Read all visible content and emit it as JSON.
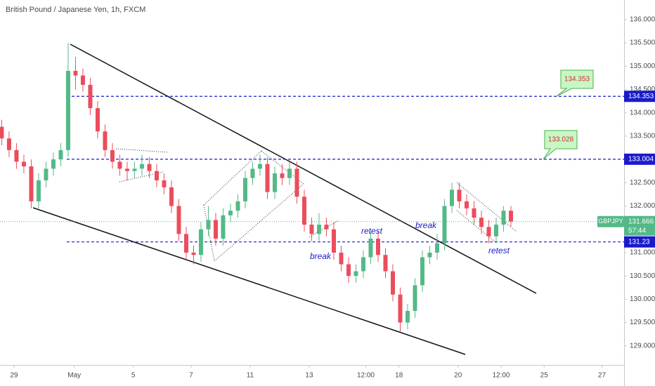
{
  "chart_data": {
    "type": "candlestick",
    "title": "British Pound / Japanese Yen, 1h, FXCM",
    "x": [
      -10,
      -4,
      2,
      8,
      14,
      20,
      26,
      32,
      38,
      44,
      50,
      56,
      62,
      68,
      74,
      80,
      86,
      92,
      98,
      104,
      110,
      116,
      122,
      128,
      134,
      140,
      146,
      152,
      158,
      164,
      170,
      176,
      182,
      188,
      194,
      200,
      206,
      212,
      218,
      224,
      230,
      236,
      242,
      248,
      254,
      260,
      266,
      272,
      278,
      284,
      290,
      296,
      302,
      308,
      314,
      320,
      326,
      332,
      338,
      344,
      350,
      356,
      362,
      368,
      374,
      380,
      386,
      392,
      398,
      404
    ],
    "open": [
      133.7,
      133.45,
      133.2,
      132.95,
      132.85,
      132.1,
      132.55,
      132.8,
      133.0,
      133.2,
      134.9,
      134.8,
      134.6,
      134.1,
      133.6,
      133.2,
      132.95,
      132.8,
      132.75,
      132.8,
      132.9,
      132.75,
      132.55,
      132.4,
      132.0,
      131.4,
      131.0,
      130.95,
      131.5,
      131.7,
      131.3,
      131.8,
      131.9,
      132.1,
      132.6,
      132.8,
      132.9,
      132.3,
      132.7,
      132.6,
      132.8,
      132.2,
      131.6,
      131.4,
      131.6,
      131.5,
      131.0,
      130.75,
      130.5,
      130.6,
      130.9,
      131.3,
      130.95,
      130.6,
      130.1,
      129.5,
      129.75,
      130.3,
      130.9,
      131.0,
      131.2,
      132.0,
      132.35,
      132.1,
      131.95,
      131.75,
      131.55,
      131.35,
      131.6,
      131.9
    ],
    "high": [
      133.85,
      133.6,
      133.35,
      133.1,
      133.0,
      132.7,
      132.95,
      133.15,
      133.35,
      135.5,
      135.2,
      134.95,
      134.75,
      134.25,
      133.75,
      133.35,
      133.1,
      132.95,
      132.95,
      133.1,
      133.05,
      132.9,
      132.7,
      132.55,
      132.15,
      131.55,
      131.15,
      131.65,
      132.0,
      131.85,
      131.95,
      132.05,
      132.25,
      132.75,
      132.95,
      133.1,
      133.05,
      132.85,
      132.9,
      132.95,
      132.95,
      132.35,
      131.75,
      131.85,
      131.75,
      131.65,
      131.15,
      130.9,
      130.75,
      131.05,
      131.45,
      131.45,
      131.1,
      130.75,
      130.25,
      129.9,
      130.45,
      131.05,
      131.15,
      131.4,
      132.15,
      132.5,
      132.5,
      132.25,
      132.1,
      131.9,
      131.7,
      131.75,
      132.0,
      132.0
    ],
    "low": [
      133.3,
      133.05,
      132.8,
      132.7,
      131.95,
      131.95,
      132.4,
      132.65,
      132.85,
      133.05,
      134.5,
      134.45,
      133.95,
      133.45,
      133.05,
      132.8,
      132.65,
      132.55,
      132.6,
      132.65,
      132.6,
      132.4,
      132.25,
      131.85,
      131.25,
      130.85,
      130.75,
      130.8,
      131.35,
      131.15,
      131.15,
      131.65,
      131.75,
      131.95,
      132.45,
      132.65,
      132.15,
      132.15,
      132.45,
      132.45,
      132.05,
      131.45,
      131.25,
      131.25,
      131.35,
      130.85,
      130.6,
      130.35,
      130.35,
      130.45,
      130.75,
      130.8,
      130.45,
      129.95,
      129.3,
      129.35,
      129.6,
      130.15,
      130.75,
      130.85,
      131.05,
      131.85,
      131.95,
      131.8,
      131.6,
      131.4,
      131.2,
      131.2,
      131.45,
      131.55
    ],
    "close": [
      133.45,
      133.2,
      132.95,
      132.85,
      132.1,
      132.55,
      132.8,
      133.0,
      133.2,
      134.9,
      134.8,
      134.6,
      134.1,
      133.6,
      133.2,
      132.95,
      132.8,
      132.75,
      132.8,
      132.9,
      132.75,
      132.55,
      132.4,
      132.0,
      131.4,
      131.0,
      130.95,
      131.5,
      131.7,
      131.3,
      131.8,
      131.9,
      132.1,
      132.6,
      132.8,
      132.9,
      132.3,
      132.7,
      132.6,
      132.8,
      132.2,
      131.6,
      131.4,
      131.6,
      131.5,
      131.0,
      130.75,
      130.5,
      130.6,
      130.9,
      131.3,
      130.95,
      130.6,
      130.1,
      129.5,
      129.75,
      130.3,
      130.9,
      131.0,
      131.2,
      132.0,
      132.35,
      132.1,
      131.95,
      131.75,
      131.55,
      131.35,
      131.6,
      131.9,
      131.666
    ],
    "up_color": "#53b987",
    "down_color": "#eb4d5c",
    "xlim": [
      -11.4,
      496
    ],
    "xticks": [
      {
        "value": 0,
        "label": "29"
      },
      {
        "value": 49,
        "label": "May"
      },
      {
        "value": 97,
        "label": "5"
      },
      {
        "value": 144,
        "label": "7"
      },
      {
        "value": 192,
        "label": "11"
      },
      {
        "value": 240,
        "label": "13"
      },
      {
        "value": 286,
        "label": "12:00"
      },
      {
        "value": 313,
        "label": "18"
      },
      {
        "value": 361,
        "label": "20"
      },
      {
        "value": 396,
        "label": "12:00"
      },
      {
        "value": 431,
        "label": "25"
      },
      {
        "value": 478,
        "label": "27"
      }
    ],
    "ylim": [
      128.59,
      136.42
    ],
    "yticks": [
      {
        "value": 136,
        "label": "136.000"
      },
      {
        "value": 135.5,
        "label": "135.500"
      },
      {
        "value": 135,
        "label": "135.000"
      },
      {
        "value": 134.5,
        "label": "134.500"
      },
      {
        "value": 134,
        "label": "134.000"
      },
      {
        "value": 133.5,
        "label": "133.500"
      },
      {
        "value": 132.5,
        "label": "132.500"
      },
      {
        "value": 132,
        "label": "132.000"
      },
      {
        "value": 131,
        "label": "131.000"
      },
      {
        "value": 130.5,
        "label": "130.500"
      },
      {
        "value": 130,
        "label": "130.000"
      },
      {
        "value": 129.5,
        "label": "129.500"
      },
      {
        "value": 129,
        "label": "129.000"
      }
    ],
    "levels": [
      134.353,
      133.004,
      131.23
    ],
    "callouts": [
      134.353,
      133.028
    ],
    "last": {
      "symbol": "GBPJPY",
      "price": 131.666,
      "countdown": "57:44"
    },
    "annotations": [
      "break",
      "retest",
      "break",
      "retest"
    ]
  }
}
